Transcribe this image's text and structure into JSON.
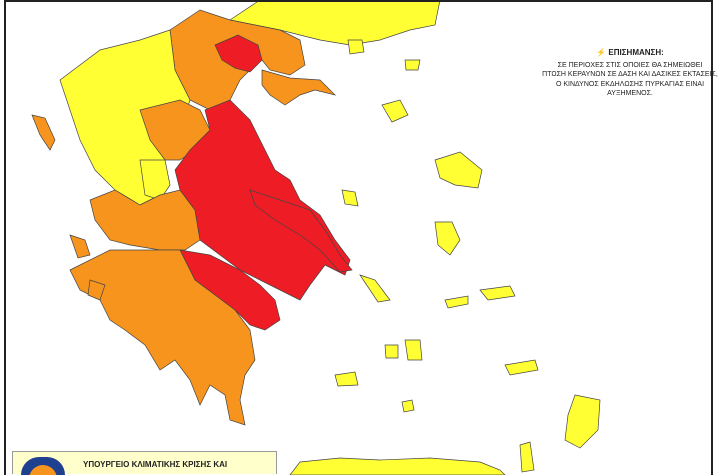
{
  "notice": {
    "icon": "lightning-icon",
    "title": "ΕΠΙΣΗΜΑΝΣΗ:",
    "lines": [
      "ΣΕ ΠΕΡΙΟΧΕΣ ΣΤΙΣ ΟΠΟΙΕΣ ΘΑ ΣΗΜΕΙΩΘΕΙ",
      "ΠΤΩΣΗ ΚΕΡΑΥΝΩΝ ΣΕ ΔΑΣΗ ΚΑΙ ΔΑΣΙΚΕΣ ΕΚΤΑΣΕΙΣ,",
      "Ο ΚΙΝΔΥΝΟΣ ΕΚΔΗΛΩΣΗΣ ΠΥΡΚΑΓΙΑΣ ΕΙΝΑΙ ΑΥΞΗΜΕΝΟΣ."
    ]
  },
  "ministry": {
    "text": "ΥΠΟΥΡΓΕΙΟ  ΚΛΙΜΑΤΙΚΗΣ ΚΡΙΣΗΣ ΚΑΙ",
    "logo": "civil-protection-logo"
  },
  "colors": {
    "risk_high": "#ffff33",
    "risk_very_high": "#f7941d",
    "risk_alert": "#ee1c25"
  }
}
